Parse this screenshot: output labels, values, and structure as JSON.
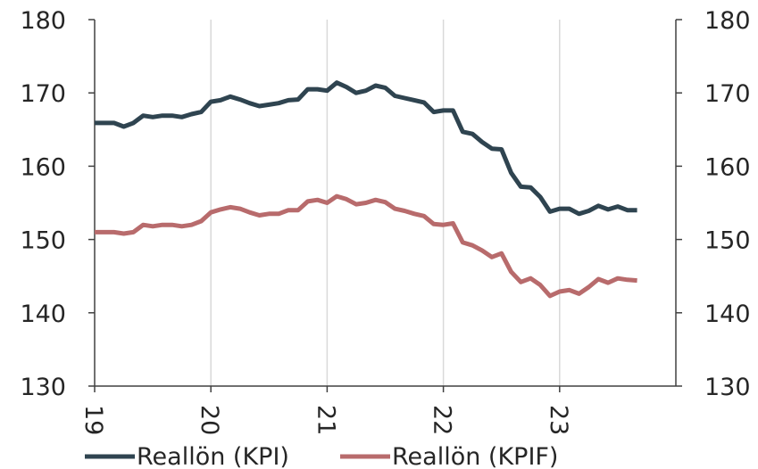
{
  "chart_data": {
    "type": "line",
    "title": "",
    "xlabel": "",
    "ylabel": "",
    "ylim": [
      130,
      180
    ],
    "yticks": [
      130,
      140,
      150,
      160,
      170,
      180
    ],
    "right_axis": {
      "ylim": [
        130,
        180
      ],
      "yticks": [
        130,
        140,
        150,
        160,
        170,
        180
      ]
    },
    "xlim": [
      2019.0,
      2024.0
    ],
    "xticks": [
      {
        "value": 2019,
        "label": "19"
      },
      {
        "value": 2020,
        "label": "20"
      },
      {
        "value": 2021,
        "label": "21"
      },
      {
        "value": 2022,
        "label": "22"
      },
      {
        "value": 2023,
        "label": "23"
      }
    ],
    "grid": "vertical",
    "legend": "bottom",
    "x": [
      2019.0,
      2019.083,
      2019.167,
      2019.25,
      2019.333,
      2019.417,
      2019.5,
      2019.583,
      2019.667,
      2019.75,
      2019.833,
      2019.917,
      2020.0,
      2020.083,
      2020.167,
      2020.25,
      2020.333,
      2020.417,
      2020.5,
      2020.583,
      2020.667,
      2020.75,
      2020.833,
      2020.917,
      2021.0,
      2021.083,
      2021.167,
      2021.25,
      2021.333,
      2021.417,
      2021.5,
      2021.583,
      2021.667,
      2021.75,
      2021.833,
      2021.917,
      2022.0,
      2022.083,
      2022.167,
      2022.25,
      2022.333,
      2022.417,
      2022.5,
      2022.583,
      2022.667,
      2022.75,
      2022.833,
      2022.917,
      2023.0,
      2023.083,
      2023.167,
      2023.25,
      2023.333,
      2023.417,
      2023.5,
      2023.583,
      2023.667
    ],
    "series": [
      {
        "name": "Reallön (KPI)",
        "color": "#2f4450",
        "values": [
          165.9,
          165.9,
          165.9,
          165.4,
          165.9,
          166.9,
          166.7,
          166.9,
          166.9,
          166.7,
          167.1,
          167.4,
          168.8,
          169.0,
          169.5,
          169.1,
          168.6,
          168.2,
          168.4,
          168.6,
          169.0,
          169.1,
          170.5,
          170.5,
          170.3,
          171.4,
          170.8,
          170.0,
          170.3,
          171.0,
          170.7,
          169.6,
          169.3,
          169.0,
          168.7,
          167.4,
          167.6,
          167.6,
          164.7,
          164.4,
          163.3,
          162.4,
          162.3,
          159.1,
          157.2,
          157.1,
          155.8,
          153.8,
          154.2,
          154.2,
          153.5,
          153.9,
          154.6,
          154.1,
          154.5,
          154.0,
          154.0
        ]
      },
      {
        "name": "Reallön (KPIF)",
        "color": "#b86b6c",
        "values": [
          151.0,
          151.0,
          151.0,
          150.8,
          151.0,
          152.0,
          151.8,
          152.0,
          152.0,
          151.8,
          152.0,
          152.5,
          153.7,
          154.1,
          154.4,
          154.2,
          153.7,
          153.3,
          153.5,
          153.5,
          154.0,
          154.0,
          155.2,
          155.4,
          155.0,
          155.9,
          155.5,
          154.8,
          155.0,
          155.4,
          155.1,
          154.2,
          153.9,
          153.5,
          153.2,
          152.1,
          152.0,
          152.2,
          149.6,
          149.2,
          148.5,
          147.6,
          148.1,
          145.6,
          144.2,
          144.7,
          143.8,
          142.3,
          142.9,
          143.1,
          142.6,
          143.5,
          144.6,
          144.1,
          144.7,
          144.5,
          144.4
        ]
      }
    ]
  }
}
